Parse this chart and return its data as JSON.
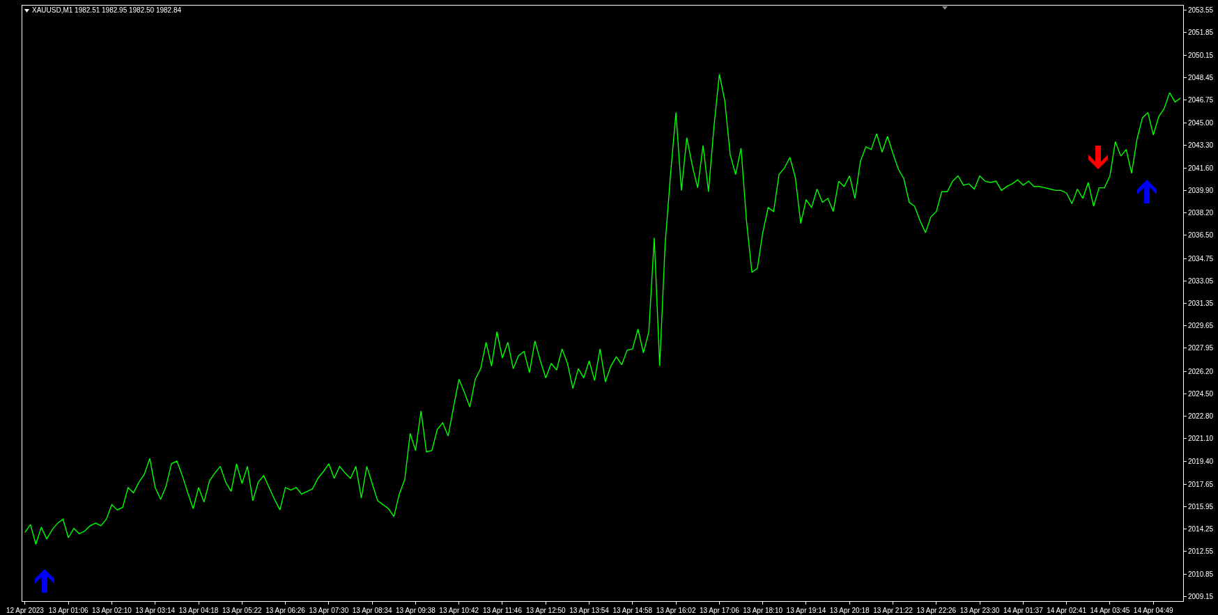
{
  "chart_data": {
    "type": "line",
    "title": "XAUUSD,M1 1982.51 1982.95 1982.50 1982.84",
    "categories": [
      "12 Apr 2023",
      null,
      null,
      null,
      null,
      null,
      null,
      null,
      "13 Apr 01:06",
      null,
      null,
      null,
      null,
      null,
      null,
      null,
      "13 Apr 02:10",
      null,
      null,
      null,
      null,
      null,
      null,
      null,
      "13 Apr 03:14",
      null,
      null,
      null,
      null,
      null,
      null,
      null,
      "13 Apr 04:18",
      null,
      null,
      null,
      null,
      null,
      null,
      null,
      "13 Apr 05:22",
      null,
      null,
      null,
      null,
      null,
      null,
      null,
      "13 Apr 06:26",
      null,
      null,
      null,
      null,
      null,
      null,
      null,
      "13 Apr 07:30",
      null,
      null,
      null,
      null,
      null,
      null,
      null,
      "13 Apr 08:34",
      null,
      null,
      null,
      null,
      null,
      null,
      null,
      "13 Apr 09:38",
      null,
      null,
      null,
      null,
      null,
      null,
      null,
      "13 Apr 10:42",
      null,
      null,
      null,
      null,
      null,
      null,
      null,
      "13 Apr 11:46",
      null,
      null,
      null,
      null,
      null,
      null,
      null,
      "13 Apr 12:50",
      null,
      null,
      null,
      null,
      null,
      null,
      null,
      "13 Apr 13:54",
      null,
      null,
      null,
      null,
      null,
      null,
      null,
      "13 Apr 14:58",
      null,
      null,
      null,
      null,
      null,
      null,
      null,
      "13 Apr 16:02",
      null,
      null,
      null,
      null,
      null,
      null,
      null,
      "13 Apr 17:06",
      null,
      null,
      null,
      null,
      null,
      null,
      null,
      "13 Apr 18:10",
      null,
      null,
      null,
      null,
      null,
      null,
      null,
      "13 Apr 19:14",
      null,
      null,
      null,
      null,
      null,
      null,
      null,
      "13 Apr 20:18",
      null,
      null,
      null,
      null,
      null,
      null,
      null,
      "13 Apr 21:22",
      null,
      null,
      null,
      null,
      null,
      null,
      null,
      "13 Apr 22:26",
      null,
      null,
      null,
      null,
      null,
      null,
      null,
      "13 Apr 23:30",
      null,
      null,
      null,
      null,
      null,
      null,
      null,
      "14 Apr 01:37",
      null,
      null,
      null,
      null,
      null,
      null,
      null,
      "14 Apr 02:41",
      null,
      null,
      null,
      null,
      null,
      null,
      null,
      "14 Apr 03:45",
      null,
      null,
      null,
      null,
      null,
      null,
      null,
      "14 Apr 04:49",
      null,
      null,
      null,
      null,
      null
    ],
    "series": [
      {
        "color": "#00ff00",
        "values": [
          2014.0,
          2014.6,
          2013.1,
          2014.4,
          2013.5,
          2014.2,
          2014.7,
          2015.0,
          2013.6,
          2014.3,
          2013.9,
          2014.1,
          2014.5,
          2014.7,
          2014.5,
          2015.0,
          2016.1,
          2015.7,
          2015.9,
          2017.4,
          2017.0,
          2017.8,
          2018.4,
          2019.6,
          2017.4,
          2016.5,
          2017.5,
          2019.2,
          2019.4,
          2018.3,
          2017.0,
          2015.8,
          2017.4,
          2016.3,
          2017.9,
          2018.5,
          2019.0,
          2017.8,
          2017.1,
          2019.2,
          2017.7,
          2019.0,
          2016.4,
          2017.8,
          2018.3,
          2017.4,
          2016.5,
          2015.7,
          2017.4,
          2017.2,
          2017.4,
          2016.9,
          2017.1,
          2017.3,
          2018.1,
          2018.6,
          2019.2,
          2018.1,
          2019.0,
          2018.5,
          2018.1,
          2019.0,
          2016.6,
          2019.0,
          2017.7,
          2016.4,
          2016.1,
          2015.8,
          2015.2,
          2016.9,
          2018.0,
          2021.5,
          2020.2,
          2023.2,
          2020.1,
          2020.2,
          2021.8,
          2022.3,
          2021.3,
          2023.5,
          2025.6,
          2024.6,
          2023.5,
          2025.6,
          2026.4,
          2028.4,
          2026.6,
          2029.2,
          2027.2,
          2028.4,
          2026.4,
          2027.4,
          2027.7,
          2026.1,
          2028.5,
          2027.0,
          2025.7,
          2026.8,
          2026.3,
          2027.9,
          2026.8,
          2024.9,
          2026.4,
          2025.7,
          2027.0,
          2025.5,
          2027.9,
          2025.4,
          2026.6,
          2027.3,
          2026.7,
          2027.8,
          2027.9,
          2029.4,
          2027.6,
          2029.2,
          2036.3,
          2026.6,
          2035.8,
          2041.1,
          2045.8,
          2039.9,
          2043.9,
          2041.8,
          2040.1,
          2043.3,
          2039.8,
          2044.7,
          2048.7,
          2046.7,
          2042.6,
          2041.1,
          2043.1,
          2037.6,
          2033.7,
          2034.0,
          2036.7,
          2038.6,
          2038.3,
          2041.1,
          2041.6,
          2042.4,
          2040.9,
          2037.4,
          2039.2,
          2038.6,
          2040.0,
          2039.0,
          2039.3,
          2038.3,
          2040.6,
          2040.2,
          2041.0,
          2039.3,
          2042.1,
          2043.2,
          2043.0,
          2044.2,
          2042.8,
          2044.0,
          2042.7,
          2041.5,
          2040.8,
          2039.0,
          2038.7,
          2037.6,
          2036.7,
          2037.9,
          2038.3,
          2039.8,
          2039.8,
          2040.6,
          2041.0,
          2040.3,
          2040.4,
          2040.0,
          2041.0,
          2040.6,
          2040.5,
          2040.6,
          2039.9,
          2040.2,
          2040.4,
          2040.7,
          2040.3,
          2040.6,
          2040.2,
          2040.2,
          2040.1,
          2040.0,
          2039.9,
          2039.9,
          2039.7,
          2038.9,
          2040.0,
          2039.3,
          2040.5,
          2038.7,
          2040.1,
          2040.1,
          2041.0,
          2043.6,
          2042.5,
          2043.0,
          2041.2,
          2043.8,
          2045.4,
          2045.8,
          2044.1,
          2045.5,
          2046.1,
          2047.3,
          2046.6,
          2046.9
        ]
      }
    ],
    "ylim": [
      2008.8,
      2053.9
    ],
    "yticks": [
      2009.15,
      2010.85,
      2012.55,
      2014.25,
      2015.95,
      2017.65,
      {
        "value": 2019.4,
        "label": "2019.40"
      },
      {
        "value": 2021.1,
        "label": "2021.10"
      },
      {
        "value": 2022.8,
        "label": "2022.80"
      },
      {
        "value": 2024.5,
        "label": "2024.50"
      },
      {
        "value": 2026.2,
        "label": "2026.20"
      },
      2027.95,
      2029.65,
      2031.35,
      2033.05,
      2034.75,
      {
        "value": 2036.5,
        "label": "2036.50"
      },
      {
        "value": 2038.2,
        "label": "2038.20"
      },
      {
        "value": 2039.9,
        "label": "2039.90"
      },
      {
        "value": 2041.6,
        "label": "2041.60"
      },
      {
        "value": 2043.3,
        "label": "2043.30"
      },
      {
        "value": 2045,
        "label": "2045.00"
      },
      2046.75,
      2048.45,
      2050.15,
      2051.85,
      2053.55
    ]
  }
}
